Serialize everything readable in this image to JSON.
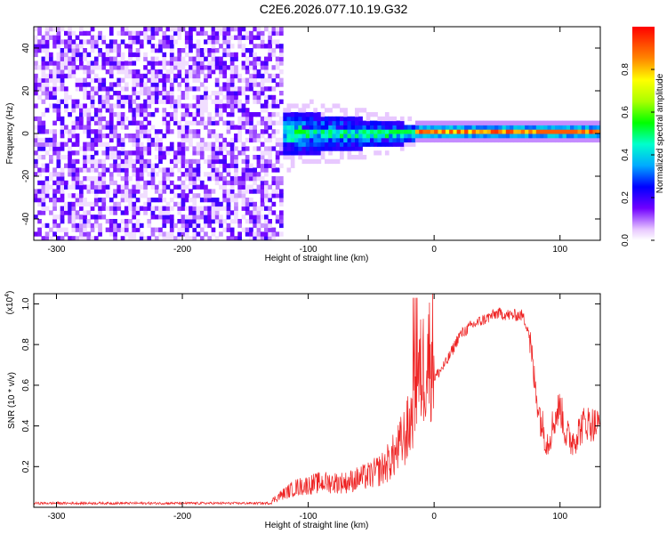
{
  "title": "C2E6.2026.077.10.19.G32",
  "chart_data": [
    {
      "type": "heatmap",
      "xlabel": "Height of straight line (km)",
      "ylabel": "Frequency (Hz)",
      "xlim": [
        -318,
        132
      ],
      "ylim": [
        -50,
        50
      ],
      "xticks": [
        -300,
        -200,
        -100,
        0,
        100
      ],
      "yticks": [
        -40,
        -20,
        0,
        20,
        40
      ],
      "colorbar": {
        "label": "Normalized spectral amplitude",
        "range": [
          0,
          1
        ],
        "ticks": [
          "0.0",
          "0.2",
          "0.4",
          "0.6",
          "0.8"
        ]
      },
      "regions": [
        {
          "x_range": [
            -318,
            -122
          ],
          "description": "noise",
          "amplitude": 0.12
        },
        {
          "x_range": [
            -122,
            -15
          ],
          "center_hz": 0,
          "width_hz": 10,
          "amplitude": 0.45
        },
        {
          "x_range": [
            -15,
            132
          ],
          "center_hz": 1,
          "width_hz": 3,
          "amplitude": 0.9
        }
      ]
    },
    {
      "type": "line",
      "xlabel": "Height of straight line (km)",
      "ylabel": "SNR (10 * v/v)",
      "y_multiplier": "(x10",
      "y_multiplier_exp": "4",
      "y_multiplier_close": ")",
      "xlim": [
        -318,
        132
      ],
      "ylim": [
        0,
        1.05
      ],
      "xticks": [
        -300,
        -200,
        -100,
        0,
        100
      ],
      "yticks": [
        "0.2",
        "0.4",
        "0.6",
        "0.8",
        "1.0"
      ],
      "series": [
        {
          "name": "SNR",
          "color": "#ee2222",
          "envelope": {
            "x": [
              -318,
              -130,
              -125,
              -110,
              -90,
              -70,
              -50,
              -40,
              -30,
              -20,
              -15,
              -10,
              -5,
              0,
              10,
              20,
              30,
              40,
              50,
              60,
              70,
              75,
              80,
              85,
              90,
              95,
              100,
              105,
              110,
              120,
              132
            ],
            "y": [
              0.02,
              0.02,
              0.04,
              0.08,
              0.1,
              0.1,
              0.13,
              0.16,
              0.22,
              0.32,
              0.45,
              0.55,
              0.6,
              0.64,
              0.72,
              0.85,
              0.9,
              0.93,
              0.96,
              0.95,
              0.95,
              0.88,
              0.6,
              0.42,
              0.32,
              0.42,
              0.5,
              0.35,
              0.33,
              0.42,
              0.4
            ]
          }
        }
      ]
    }
  ]
}
